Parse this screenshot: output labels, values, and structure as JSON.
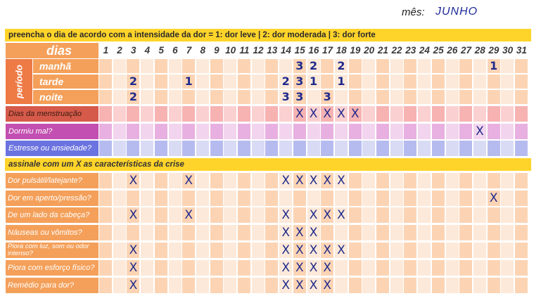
{
  "month": {
    "label": "mês:",
    "value": "JUNHO"
  },
  "header_banner": "preencha o dia de acordo com a intensidade da dor = 1: dor leve | 2: dor moderada | 3: dor forte",
  "days_label": "dias",
  "period_label": "período",
  "days": [
    "1",
    "2",
    "3",
    "4",
    "5",
    "6",
    "7",
    "8",
    "9",
    "10",
    "11",
    "12",
    "13",
    "14",
    "15",
    "16",
    "17",
    "18",
    "19",
    "20",
    "21",
    "22",
    "23",
    "24",
    "25",
    "26",
    "27",
    "28",
    "29",
    "30",
    "31"
  ],
  "periods": [
    {
      "label": "manhã",
      "values": {
        "15": "3",
        "16": "2",
        "18": "2",
        "29": "1"
      }
    },
    {
      "label": "tarde",
      "values": {
        "3": "2",
        "7": "1",
        "14": "2",
        "15": "3",
        "16": "1",
        "18": "1"
      }
    },
    {
      "label": "noite",
      "values": {
        "3": "2",
        "14": "3",
        "15": "3",
        "17": "3"
      }
    }
  ],
  "tracking": [
    {
      "label": "Dias da menstruação",
      "marks": [
        "15",
        "16",
        "17",
        "18",
        "19"
      ]
    },
    {
      "label": "Dormiu mal?",
      "marks": [
        "28"
      ]
    },
    {
      "label": "Estresse ou ansiedade?",
      "marks": []
    }
  ],
  "section_banner": "assinale com um X as características da crise",
  "characteristics": [
    {
      "label": "Dor pulsátil/latejante?",
      "marks": [
        "3",
        "7",
        "14",
        "15",
        "16",
        "17",
        "18"
      ]
    },
    {
      "label": "Dor em aperto/pressão?",
      "marks": [
        "29"
      ]
    },
    {
      "label": "De um lado da cabeça?",
      "marks": [
        "3",
        "7",
        "14",
        "16",
        "17",
        "18"
      ]
    },
    {
      "label": "Náuseas ou vômitos?",
      "marks": [
        "14",
        "15",
        "16"
      ]
    },
    {
      "label": "Piora com luz, som ou odor intenso?",
      "marks": [
        "3",
        "14",
        "15",
        "16",
        "17",
        "18"
      ]
    },
    {
      "label": "Piora com esforço físico?",
      "marks": [
        "3",
        "14",
        "15",
        "16",
        "17"
      ]
    },
    {
      "label": "Remédio para dor?",
      "marks": [
        "3",
        "14",
        "15",
        "16",
        "17"
      ]
    }
  ],
  "mark_symbol": "X"
}
